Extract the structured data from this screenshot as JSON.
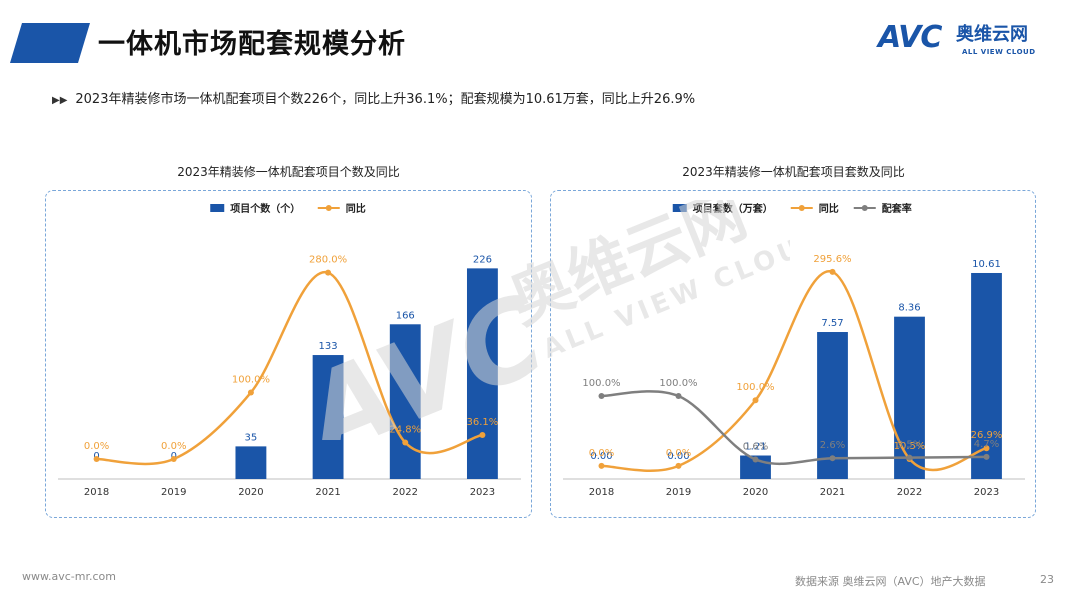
{
  "header": {
    "title": "一体机市场配套规模分析",
    "accent_color": "#1a55a8"
  },
  "logo": {
    "mark": "AVC",
    "name_cn": "奥维云网",
    "name_en": "ALL VIEW CLOUD"
  },
  "summary": {
    "bullet_icon": "double-chevron-right-icon",
    "text": "2023年精装修市场一体机配套项目个数226个，同比上升36.1%；配套规模为10.61万套，同比上升26.9%"
  },
  "watermark": {
    "mark": "AVC",
    "name_cn": "奥维云网",
    "name_en": "ALL VIEW CLOUD"
  },
  "chart_data": [
    {
      "type": "bar",
      "title": "2023年精装修一体机配套项目个数及同比",
      "categories": [
        "2018",
        "2019",
        "2020",
        "2021",
        "2022",
        "2023"
      ],
      "legend_position": "top",
      "grid": false,
      "series": [
        {
          "name": "项目个数（个）",
          "type": "bar",
          "color": "#1a55a8",
          "values": [
            0,
            0,
            35,
            133,
            166,
            226
          ],
          "labels": [
            "0",
            "0",
            "35",
            "133",
            "166",
            "226"
          ],
          "ylim": [
            0,
            250
          ]
        },
        {
          "name": "同比",
          "type": "line",
          "smooth": true,
          "color": "#f0a13a",
          "values": [
            0.0,
            0.0,
            100.0,
            280.0,
            24.8,
            36.1
          ],
          "labels": [
            "0.0%",
            "0.0%",
            "100.0%",
            "280.0%",
            "24.8%",
            "36.1%"
          ],
          "ylim": [
            -30,
            320
          ]
        }
      ]
    },
    {
      "type": "bar",
      "title": "2023年精装修一体机配套项目套数及同比",
      "categories": [
        "2018",
        "2019",
        "2020",
        "2021",
        "2022",
        "2023"
      ],
      "legend_position": "top",
      "grid": false,
      "series": [
        {
          "name": "项目套数（万套）",
          "type": "bar",
          "color": "#1a55a8",
          "values": [
            0.0,
            0.0,
            1.21,
            7.57,
            8.36,
            10.61
          ],
          "labels": [
            "0.00",
            "0.00",
            "1.21",
            "7.57",
            "8.36",
            "10.61"
          ],
          "ylim": [
            0,
            12
          ]
        },
        {
          "name": "同比",
          "type": "line",
          "smooth": true,
          "color": "#f0a13a",
          "values": [
            0.0,
            0.0,
            100.0,
            295.6,
            10.5,
            26.9
          ],
          "labels": [
            "0.0%",
            "0.0%",
            "100.0%",
            "295.6%",
            "10.5%",
            "26.9%"
          ],
          "ylim": [
            -20,
            335
          ]
        },
        {
          "name": "配套率",
          "type": "line",
          "smooth": true,
          "color": "#7f7f7f",
          "values": [
            100.0,
            100.0,
            0.6,
            2.6,
            3.5,
            4.7
          ],
          "labels": [
            "100.0%",
            "100.0%",
            "0.6%",
            "2.6%",
            "3.5%",
            "4.7%"
          ],
          "ylim": [
            -30,
            335
          ]
        }
      ]
    }
  ],
  "footer": {
    "website": "www.avc-mr.com",
    "source": "数据来源  奥维云网（AVC）地产大数据",
    "page_number": "23"
  }
}
